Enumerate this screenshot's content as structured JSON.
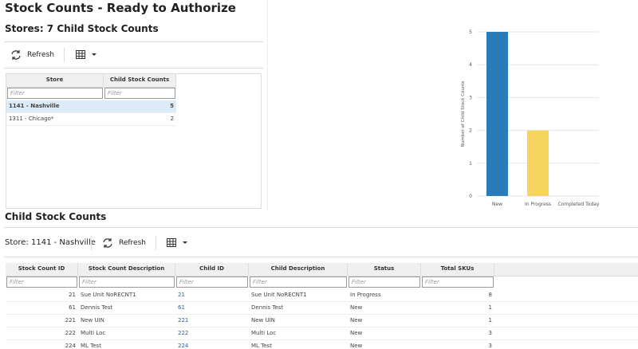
{
  "header": {
    "title": "Stock Counts - Ready to Authorize"
  },
  "stores_panel": {
    "title": "Stores: 7 Child Stock Counts",
    "refresh": "Refresh",
    "table": {
      "columns": [
        "Store",
        "Child Stock Counts"
      ],
      "filter": "Filter",
      "rows": [
        [
          "1141 - Nashville",
          "5"
        ],
        [
          "1311 - Chicago*",
          "2"
        ]
      ]
    }
  },
  "chart_data": {
    "type": "bar",
    "ylabel": "Number of Child Stock Counts",
    "categories": [
      "New",
      "In Progress",
      "Completed Today"
    ],
    "values": [
      5,
      2,
      0
    ],
    "colors": [
      "#2b7bb9",
      "#f6d45e",
      "#cccccc"
    ],
    "ylim": [
      0,
      5
    ],
    "yticks": [
      0,
      1,
      2,
      3,
      4,
      5
    ],
    "grid": true
  },
  "child_panel": {
    "title": "Child Stock Counts",
    "store_label": "Store: 1141 - Nashville",
    "refresh": "Refresh",
    "table": {
      "columns": [
        "Stock Count ID",
        "Stock Count Description",
        "Child ID",
        "Child Description",
        "Status",
        "Total SKUs"
      ],
      "filter": "Filter",
      "rows": [
        [
          "21",
          "Sue Unit NoRECNT1",
          "21",
          "Sue Unit NoRECNT1",
          "In Progress",
          "8"
        ],
        [
          "61",
          "Dennis Test",
          "61",
          "Dennis Test",
          "New",
          "1"
        ],
        [
          "221",
          "New UIN",
          "221",
          "New UIN",
          "New",
          "1"
        ],
        [
          "222",
          "Multi Loc",
          "222",
          "Multi Loc",
          "New",
          "3"
        ],
        [
          "224",
          "ML Test",
          "224",
          "ML Test",
          "New",
          "3"
        ]
      ]
    }
  }
}
